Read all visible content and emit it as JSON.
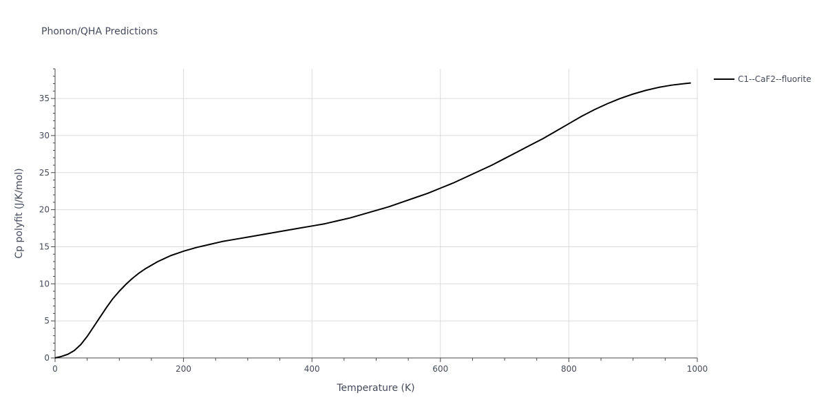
{
  "chart_data": {
    "type": "line",
    "title": "Phonon/QHA Predictions",
    "xlabel": "Temperature (K)",
    "ylabel": "Cp polyfit (J/K/mol)",
    "xlim": [
      0,
      1000
    ],
    "ylim": [
      0,
      39
    ],
    "xticks": [
      0,
      200,
      400,
      600,
      800,
      1000
    ],
    "yticks": [
      0,
      5,
      10,
      15,
      20,
      25,
      30,
      35
    ],
    "grid": true,
    "legend_position": "top-right",
    "series": [
      {
        "name": "C1--CaF2--fluorite",
        "color": "#000000",
        "x": [
          0,
          10,
          20,
          30,
          40,
          50,
          60,
          70,
          80,
          90,
          100,
          110,
          120,
          130,
          140,
          150,
          160,
          170,
          180,
          190,
          200,
          220,
          240,
          260,
          280,
          300,
          320,
          340,
          360,
          380,
          400,
          420,
          440,
          460,
          480,
          500,
          520,
          540,
          560,
          580,
          600,
          620,
          640,
          660,
          680,
          700,
          720,
          740,
          760,
          780,
          800,
          820,
          840,
          860,
          880,
          900,
          920,
          940,
          960,
          980,
          990
        ],
        "y": [
          0,
          0.2,
          0.5,
          1.0,
          1.8,
          2.9,
          4.2,
          5.5,
          6.8,
          8.0,
          9.0,
          9.9,
          10.7,
          11.4,
          12.0,
          12.5,
          13.0,
          13.4,
          13.8,
          14.1,
          14.4,
          14.9,
          15.3,
          15.7,
          16.0,
          16.3,
          16.6,
          16.9,
          17.2,
          17.5,
          17.8,
          18.1,
          18.5,
          18.9,
          19.4,
          19.9,
          20.4,
          21.0,
          21.6,
          22.2,
          22.9,
          23.6,
          24.4,
          25.2,
          26.0,
          26.9,
          27.8,
          28.7,
          29.6,
          30.6,
          31.6,
          32.6,
          33.5,
          34.3,
          35.0,
          35.6,
          36.1,
          36.5,
          36.8,
          37.0,
          37.1
        ]
      }
    ]
  }
}
